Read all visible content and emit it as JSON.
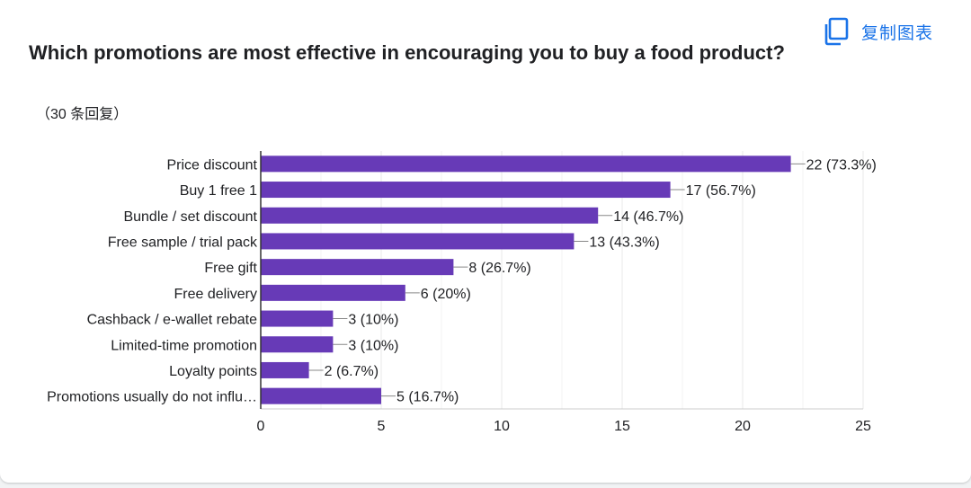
{
  "toolbar": {
    "copy_label": "复制图表",
    "copy_icon": "copy-icon"
  },
  "question": {
    "title": "Which promotions are most effective in encouraging you to buy a food product?",
    "responses": "（30 条回复）"
  },
  "colors": {
    "bar": "#673ab7",
    "accent": "#1a73e8",
    "grid": "#e8e8e8",
    "axis": "#333333",
    "text": "#202124"
  },
  "chart_data": {
    "type": "bar",
    "orientation": "horizontal",
    "categories": [
      "Price discount",
      "Buy 1 free 1",
      "Bundle / set discount",
      "Free sample / trial pack",
      "Free gift",
      "Free delivery",
      "Cashback / e-wallet rebate",
      "Limited-time promotion",
      "Loyalty points",
      "Promotions usually do not influ…"
    ],
    "values": [
      22,
      17,
      14,
      13,
      8,
      6,
      3,
      3,
      2,
      5
    ],
    "data_labels": [
      "22 (73.3%)",
      "17 (56.7%)",
      "14 (46.7%)",
      "13 (43.3%)",
      "8 (26.7%)",
      "6 (20%)",
      "3 (10%)",
      "3 (10%)",
      "2 (6.7%)",
      "5 (16.7%)"
    ],
    "xlim": [
      0,
      25
    ],
    "xticks": [
      0,
      5,
      10,
      15,
      20,
      25
    ],
    "xtick_labels": [
      "0",
      "5",
      "10",
      "15",
      "20",
      "25"
    ],
    "grid": true
  }
}
